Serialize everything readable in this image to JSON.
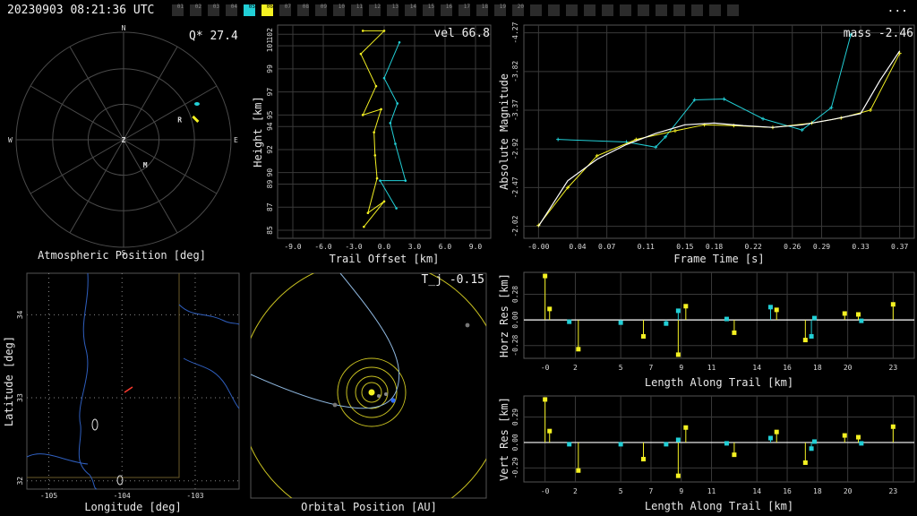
{
  "header": {
    "timestamp": "20230903 08:21:36 UTC",
    "more_label": "...",
    "tabs": [
      "01",
      "02",
      "03",
      "04",
      "05",
      "06",
      "07",
      "08",
      "09",
      "10",
      "11",
      "12",
      "13",
      "14",
      "15",
      "16",
      "17",
      "18",
      "19",
      "20"
    ],
    "active_cyan_tab": "05",
    "active_yellow_tab": "06"
  },
  "colors": {
    "station1": "#22cfd6",
    "station2": "#f4f122",
    "grid": "#3a3a3a",
    "axis": "#9a9a9a",
    "map_river": "#2f5fbf",
    "map_state": "#6a5a2a",
    "map_trail": "#ff3b2f",
    "sun": "#f4f122",
    "earth": "#2f6bff"
  },
  "chart_data": [
    {
      "id": "atmospheric",
      "type": "scatter",
      "xlabel": "Atmospheric Position [deg]",
      "annotation": "Q* 27.4",
      "compass": {
        "n": "N",
        "s": "S",
        "e": "E",
        "w": "W",
        "z": "Z"
      },
      "markers": [
        {
          "label": "R",
          "az": 72,
          "alt": 40
        },
        {
          "label": "M",
          "az": 145,
          "alt": 60
        }
      ],
      "station1_track": {
        "az": 64,
        "alt": 18
      },
      "station2_track": {
        "az": 74,
        "alt": 24
      }
    },
    {
      "id": "trail",
      "type": "line",
      "xlabel": "Trail Offset [km]",
      "ylabel": "Height [km]",
      "annotation": "vel 66.8",
      "xticks": [
        "-9.0",
        "-6.0",
        "-3.0",
        "0.0",
        "3.0",
        "6.0",
        "9.0"
      ],
      "yticks": [
        "85",
        "87",
        "89",
        "90",
        "92",
        "94",
        "95",
        "97",
        "99",
        "101",
        "102"
      ],
      "xlim": [
        -10.5,
        10.5
      ],
      "ylim": [
        84.3,
        102.8
      ],
      "series": [
        {
          "station": "station2",
          "x": [
            -2.1,
            0.0,
            -2.3,
            -0.8,
            -2.1,
            -0.3,
            -1.0,
            -0.9,
            -0.7,
            -1.6,
            0.0,
            -2.0
          ],
          "y": [
            102.3,
            102.3,
            100.3,
            97.5,
            95.0,
            95.5,
            93.5,
            91.5,
            89.5,
            86.5,
            87.5,
            85.3
          ]
        },
        {
          "station": "station1",
          "x": [
            1.5,
            0.0,
            1.3,
            0.6,
            1.1,
            2.1,
            -0.4,
            1.2
          ],
          "y": [
            101.3,
            98.2,
            96.0,
            94.3,
            92.5,
            89.3,
            89.3,
            86.9
          ]
        }
      ]
    },
    {
      "id": "magnitude",
      "type": "line",
      "xlabel": "Frame Time [s]",
      "ylabel": "Absolute Magnitude",
      "annotation": "mass -2.46",
      "xticks": [
        "-0.00",
        "0.04",
        "0.07",
        "0.11",
        "0.15",
        "0.18",
        "0.22",
        "0.26",
        "0.29",
        "0.33",
        "0.37"
      ],
      "yticks": [
        "-4.27",
        "-3.82",
        "-3.37",
        "-2.92",
        "-2.47",
        "-2.02"
      ],
      "xlim": [
        -0.015,
        0.385
      ],
      "ylim": [
        -4.36,
        -1.88
      ],
      "series": [
        {
          "station": "station1",
          "x": [
            0.02,
            0.09,
            0.12,
            0.13,
            0.16,
            0.19,
            0.23,
            0.27,
            0.3,
            0.32
          ],
          "y": [
            -3.03,
            -3.0,
            -2.94,
            -3.06,
            -3.49,
            -3.5,
            -3.27,
            -3.14,
            -3.4,
            -4.25
          ]
        },
        {
          "station": "station2",
          "x": [
            -0.0,
            0.03,
            0.06,
            0.1,
            0.14,
            0.17,
            0.2,
            0.24,
            0.28,
            0.31,
            0.34,
            0.37
          ],
          "y": [
            -2.03,
            -2.47,
            -2.84,
            -3.03,
            -3.13,
            -3.2,
            -3.19,
            -3.17,
            -3.22,
            -3.28,
            -3.37,
            -4.03
          ]
        },
        {
          "station": "fit",
          "x": [
            0.0,
            0.03,
            0.06,
            0.09,
            0.12,
            0.15,
            0.18,
            0.21,
            0.24,
            0.27,
            0.3,
            0.33,
            0.35,
            0.37
          ],
          "y": [
            -2.02,
            -2.55,
            -2.8,
            -2.97,
            -3.1,
            -3.2,
            -3.22,
            -3.19,
            -3.17,
            -3.2,
            -3.26,
            -3.33,
            -3.72,
            -4.06
          ]
        }
      ]
    },
    {
      "id": "map",
      "type": "scatter",
      "xlabel": "Longitude [deg]",
      "ylabel": "Latitude [deg]",
      "xticks": [
        "-105",
        "-104",
        "-103"
      ],
      "yticks": [
        "32",
        "33",
        "34"
      ],
      "xlim": [
        -105.3,
        -102.4
      ],
      "ylim": [
        31.9,
        34.5
      ]
    },
    {
      "id": "orbit",
      "type": "scatter",
      "xlabel": "Orbital Position [AU]",
      "annotation": "T_j -0.15"
    },
    {
      "id": "horz_res",
      "type": "bar",
      "xlabel": "Length Along Trail [km]",
      "ylabel": "Horz Res [km]",
      "xticks": [
        "-0",
        "2",
        "5",
        "7",
        "9",
        "11",
        "14",
        "16",
        "18",
        "20",
        "23"
      ],
      "yticks": [
        "-0.28",
        "0.00",
        "0.28"
      ],
      "xlim": [
        -1.4,
        24.4
      ],
      "ylim": [
        -0.42,
        0.52
      ],
      "series": [
        {
          "station": "station2",
          "x": [
            0.0,
            0.3,
            2.2,
            6.5,
            8.8,
            9.3,
            12.5,
            15.3,
            17.2,
            19.8,
            20.7,
            23.0
          ],
          "y": [
            0.48,
            0.12,
            -0.32,
            -0.18,
            -0.38,
            0.15,
            -0.14,
            0.11,
            -0.22,
            0.07,
            0.06,
            0.17
          ]
        },
        {
          "station": "station1",
          "x": [
            1.6,
            5.0,
            8.0,
            8.8,
            12.0,
            14.9,
            17.6,
            17.8,
            20.9
          ],
          "y": [
            -0.02,
            -0.03,
            -0.04,
            0.1,
            0.01,
            0.14,
            -0.18,
            0.02,
            -0.01
          ]
        }
      ]
    },
    {
      "id": "vert_res",
      "type": "bar",
      "xlabel": "Length Along Trail [km]",
      "ylabel": "Vert Res [km]",
      "xticks": [
        "-0",
        "2",
        "5",
        "7",
        "9",
        "11",
        "14",
        "16",
        "18",
        "20",
        "23"
      ],
      "yticks": [
        "-0.29",
        "0.00",
        "0.29"
      ],
      "xlim": [
        -1.4,
        24.4
      ],
      "ylim": [
        -0.45,
        0.53
      ],
      "series": [
        {
          "station": "station2",
          "x": [
            0.0,
            0.3,
            2.2,
            6.5,
            8.8,
            9.3,
            12.5,
            15.3,
            17.2,
            19.8,
            20.7,
            23.0
          ],
          "y": [
            0.49,
            0.13,
            -0.32,
            -0.19,
            -0.38,
            0.17,
            -0.14,
            0.12,
            -0.23,
            0.08,
            0.06,
            0.18
          ]
        },
        {
          "station": "station1",
          "x": [
            1.6,
            5.0,
            8.0,
            8.8,
            12.0,
            14.9,
            17.6,
            17.8,
            20.9
          ],
          "y": [
            -0.02,
            -0.02,
            -0.02,
            0.03,
            -0.01,
            0.05,
            -0.07,
            0.01,
            -0.01
          ]
        }
      ]
    }
  ]
}
